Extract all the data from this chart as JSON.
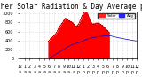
{
  "title": "Milwaukee Weather Solar Radiation & Day Average per Minute (Today)",
  "xlabel": "",
  "ylabel": "",
  "background_color": "#ffffff",
  "plot_bg_color": "#ffffff",
  "grid_color": "#aaaaaa",
  "fill_color": "#ff0000",
  "line_color": "#cc0000",
  "avg_line_color": "#0000cc",
  "legend_solar_color": "#ff2222",
  "legend_avg_color": "#2222ff",
  "title_fontsize": 5.5,
  "tick_fontsize": 3.5,
  "num_points": 1440,
  "peak_minute": 780,
  "peak_value": 950,
  "ylim": [
    0,
    1050
  ],
  "xlim": [
    0,
    1440
  ]
}
